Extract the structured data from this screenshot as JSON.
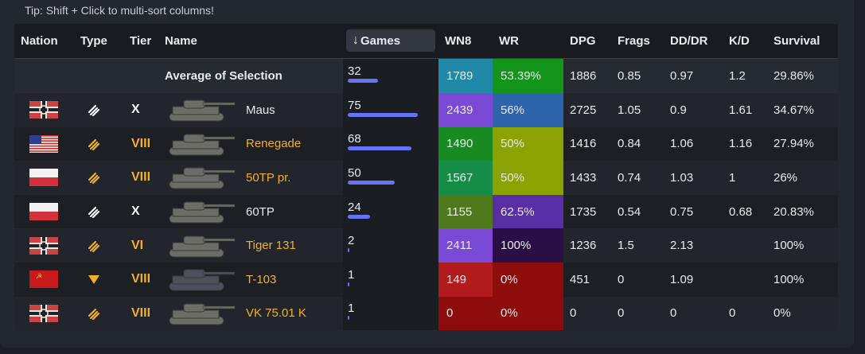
{
  "tip": "Tip: Shift + Click to multi-sort columns!",
  "headers": {
    "nation": "Nation",
    "type": "Type",
    "tier": "Tier",
    "name": "Name",
    "games": "Games",
    "wn8": "WN8",
    "wr": "WR",
    "dpg": "DPG",
    "frags": "Frags",
    "dddr": "DD/DR",
    "kd": "K/D",
    "survival": "Survival"
  },
  "average": {
    "label": "Average of Selection",
    "games": "32",
    "games_fraction": 0.43,
    "wn8": "1789",
    "wn8_color": "#2089a7",
    "wr": "53.39%",
    "wr_color": "#12951a",
    "dpg": "1886",
    "frags": "0.85",
    "dddr": "0.97",
    "kd": "1.2",
    "survival": "29.86%"
  },
  "rows": [
    {
      "nation": "germany",
      "type": "heavy-tank-icon",
      "tier": "X",
      "tier_color": "#f4f5f7",
      "name": "Maus",
      "name_color": "#e8eaee",
      "games": "75",
      "games_fraction": 1.0,
      "wn8": "2439",
      "wn8_color": "#7a4ad6",
      "wr": "56%",
      "wr_color": "#2e64ac",
      "dpg": "2725",
      "frags": "1.05",
      "dddr": "0.9",
      "kd": "1.61",
      "survival": "34.67%"
    },
    {
      "nation": "usa",
      "type": "heavy-tank-icon",
      "tier": "VIII",
      "tier_color": "#f0b02a",
      "name": "Renegade",
      "name_color": "#f0b02a",
      "games": "68",
      "games_fraction": 0.91,
      "wn8": "1490",
      "wn8_color": "#178a22",
      "wr": "50%",
      "wr_color": "#8ba300",
      "dpg": "1416",
      "frags": "0.84",
      "dddr": "1.06",
      "kd": "1.16",
      "survival": "27.94%"
    },
    {
      "nation": "poland",
      "type": "heavy-tank-icon",
      "tier": "VIII",
      "tier_color": "#f0b02a",
      "name": "50TP pr.",
      "name_color": "#f0b02a",
      "games": "50",
      "games_fraction": 0.67,
      "wn8": "1567",
      "wn8_color": "#168d47",
      "wr": "50%",
      "wr_color": "#8ba300",
      "dpg": "1433",
      "frags": "0.74",
      "dddr": "1.03",
      "kd": "1",
      "survival": "26%"
    },
    {
      "nation": "poland",
      "type": "heavy-tank-icon",
      "tier": "X",
      "tier_color": "#f4f5f7",
      "name": "60TP",
      "name_color": "#e8eaee",
      "games": "24",
      "games_fraction": 0.32,
      "wn8": "1155",
      "wn8_color": "#4f7a1b",
      "wr": "62.5%",
      "wr_color": "#5a2fa6",
      "dpg": "1735",
      "frags": "0.54",
      "dddr": "0.75",
      "kd": "0.68",
      "survival": "20.83%"
    },
    {
      "nation": "germany",
      "type": "heavy-tank-icon",
      "tier": "VI",
      "tier_color": "#f0b02a",
      "name": "Tiger 131",
      "name_color": "#f0b02a",
      "games": "2",
      "games_fraction": 0.027,
      "wn8": "2411",
      "wn8_color": "#7a4ad6",
      "wr": "100%",
      "wr_color": "#2a0f44",
      "dpg": "1236",
      "frags": "1.5",
      "dddr": "2.13",
      "kd": "",
      "survival": "100%"
    },
    {
      "nation": "ussr",
      "type": "premium-tank-icon",
      "tier": "VIII",
      "tier_color": "#f0b02a",
      "name": "T-103",
      "name_color": "#f0b02a",
      "games": "1",
      "games_fraction": 0.013,
      "wn8": "149",
      "wn8_color": "#b11b1b",
      "wr": "0%",
      "wr_color": "#8d0c0c",
      "dpg": "451",
      "frags": "0",
      "dddr": "1.09",
      "kd": "",
      "survival": "100%"
    },
    {
      "nation": "germany",
      "type": "heavy-tank-icon",
      "tier": "VIII",
      "tier_color": "#f0b02a",
      "name": "VK 75.01 K",
      "name_color": "#f0b02a",
      "games": "1",
      "games_fraction": 0.013,
      "wn8": "0",
      "wn8_color": "#8d0c0c",
      "wr": "0%",
      "wr_color": "#8d0c0c",
      "dpg": "0",
      "frags": "0",
      "dddr": "0",
      "kd": "0",
      "survival": "0%"
    }
  ]
}
